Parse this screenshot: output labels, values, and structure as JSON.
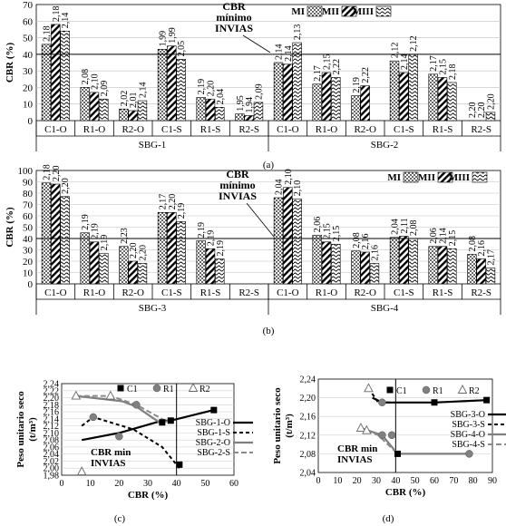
{
  "chart_data": [
    {
      "type": "bar",
      "panel": "(a)",
      "ylabel": "CBR (%)",
      "ylim": [
        0,
        70
      ],
      "yticks": [
        0,
        10,
        20,
        30,
        40,
        50,
        60,
        70
      ],
      "reference_line": {
        "value": 40,
        "label_lines": [
          "CBR",
          "mínimo",
          "INVIAS"
        ]
      },
      "legend": [
        "MI",
        "MII",
        "MIII"
      ],
      "groups": [
        {
          "name": "SBG-1",
          "categories": [
            "C1-O",
            "R1-O",
            "R2-O",
            "C1-S",
            "R1-S",
            "R2-S"
          ]
        },
        {
          "name": "SBG-2",
          "categories": [
            "C1-O",
            "R1-O",
            "R2-O",
            "C1-S",
            "R1-S",
            "R2-S"
          ]
        }
      ],
      "series": [
        {
          "name": "MI",
          "values": [
            46,
            20,
            7,
            43,
            14,
            4,
            35,
            22,
            15,
            36,
            28,
            0
          ],
          "labels": [
            "2,18",
            "2,08",
            "2,02",
            "1,99",
            "2,19",
            "1,95",
            "2,14",
            "2,17",
            "2,19",
            "2,12",
            "2,17",
            "2,20"
          ]
        },
        {
          "name": "MII",
          "values": [
            58,
            17,
            6,
            45,
            13,
            3,
            34,
            29,
            21,
            29,
            26,
            0
          ],
          "labels": [
            "2,18",
            "2,10",
            "2,01",
            "1,99",
            "2,20",
            "1,94",
            "2,14",
            "2,15",
            "2,22",
            "2,14",
            "2,15",
            "2,20"
          ]
        },
        {
          "name": "MIII",
          "values": [
            54,
            13,
            12,
            37,
            8,
            11,
            47,
            26,
            0,
            40,
            23,
            5
          ],
          "labels": [
            "2,14",
            "2,09",
            "2,14",
            "2,05",
            "2,04",
            "2,09",
            "2,13",
            "2,22",
            "",
            "2,12",
            "2,18",
            "2,20"
          ]
        }
      ]
    },
    {
      "type": "bar",
      "panel": "(b)",
      "ylabel": "CBR (%)",
      "ylim": [
        0,
        100
      ],
      "yticks": [
        0,
        10,
        20,
        30,
        40,
        50,
        60,
        70,
        80,
        90,
        100
      ],
      "reference_line": {
        "value": 40,
        "label_lines": [
          "CBR",
          "mínimo",
          "INVIAS"
        ]
      },
      "legend": [
        "MI",
        "MII",
        "MIII"
      ],
      "groups": [
        {
          "name": "SBG-3",
          "categories": [
            "C1-O",
            "R1-O",
            "R2-O",
            "C1-S",
            "R1-S",
            "R2-S"
          ]
        },
        {
          "name": "SBG-4",
          "categories": [
            "C1-O",
            "R1-O",
            "R2-O",
            "C1-S",
            "R1-S",
            "R2-S"
          ]
        }
      ],
      "series": [
        {
          "name": "MI",
          "values": [
            89,
            45,
            33,
            63,
            38,
            0,
            76,
            43,
            29,
            41,
            33,
            26
          ],
          "labels": [
            "2,18",
            "2,19",
            "2,23",
            "2,17",
            "2,19",
            "",
            "2,04",
            "2,06",
            "2,08",
            "2,04",
            "2,06",
            "2,08"
          ]
        },
        {
          "name": "MII",
          "values": [
            88,
            37,
            20,
            63,
            31,
            0,
            85,
            37,
            28,
            42,
            33,
            22
          ],
          "labels": [
            "2,20",
            "2,19",
            "2,20",
            "2,20",
            "2,19",
            "",
            "2,10",
            "2,15",
            "2,16",
            "2,11",
            "2,14",
            "2,16"
          ]
        },
        {
          "name": "MIII",
          "values": [
            77,
            27,
            18,
            55,
            22,
            0,
            75,
            35,
            18,
            40,
            31,
            14
          ],
          "labels": [
            "2,20",
            "2,19",
            "2,20",
            "2,19",
            "2,19",
            "",
            "2,10",
            "2,15",
            "2,16",
            "2,08",
            "2,15",
            "2,17"
          ]
        }
      ]
    },
    {
      "type": "line",
      "panel": "(c)",
      "xlabel": "CBR (%)",
      "ylabel": "Peso unitario seco (t/m³)",
      "ylabel_lines": [
        "Peso unitario seco",
        "(t/m³)"
      ],
      "xlim": [
        0,
        60
      ],
      "xticks": [
        0,
        10,
        20,
        30,
        40,
        50,
        60
      ],
      "ylim": [
        1.98,
        2.24
      ],
      "yticks": [
        "1,98",
        "2,00",
        "2,02",
        "2,04",
        "2,06",
        "2,08",
        "2,10",
        "2,12",
        "2,14",
        "2,16",
        "2,18",
        "2,20",
        "2,22",
        "2,24"
      ],
      "reference_line": {
        "x": 40,
        "label_lines": [
          "CBR min",
          "INVIAS"
        ]
      },
      "marker_legend": [
        "C1",
        "R1",
        "R2"
      ],
      "series": [
        {
          "name": "SBG-1-O",
          "style": "solid-black",
          "points": [
            [
              7,
              2.08
            ],
            [
              20,
              2.1
            ],
            [
              35,
              2.135
            ],
            [
              38,
              2.135
            ],
            [
              53,
              2.165
            ]
          ]
        },
        {
          "name": "SBG-1-S",
          "style": "dashed-black",
          "points": [
            [
              7,
              2.12
            ],
            [
              11,
              2.145
            ],
            [
              25,
              2.11
            ],
            [
              35,
              2.06
            ],
            [
              41,
              2.0
            ]
          ]
        },
        {
          "name": "SBG-2-O",
          "style": "solid-gray",
          "points": [
            [
              5,
              2.205
            ],
            [
              21,
              2.19
            ],
            [
              26,
              2.175
            ],
            [
              34,
              2.13
            ],
            [
              38,
              2.135
            ]
          ]
        },
        {
          "name": "SBG-2-S",
          "style": "dashed-gray",
          "points": [
            [
              5,
              2.205
            ],
            [
              17,
              2.205
            ],
            [
              26,
              2.18
            ],
            [
              36,
              2.135
            ]
          ]
        }
      ],
      "markers": [
        {
          "type": "C1",
          "x": 35,
          "y": 2.13
        },
        {
          "type": "C1",
          "x": 38,
          "y": 2.135
        },
        {
          "type": "C1",
          "x": 41,
          "y": 2.01
        },
        {
          "type": "C1",
          "x": 53,
          "y": 2.165
        },
        {
          "type": "R1",
          "x": 11,
          "y": 2.145
        },
        {
          "type": "R1",
          "x": 20,
          "y": 2.09
        },
        {
          "type": "R1",
          "x": 26,
          "y": 2.18
        },
        {
          "type": "R2",
          "x": 5,
          "y": 2.205
        },
        {
          "type": "R2",
          "x": 17,
          "y": 2.205
        },
        {
          "type": "R2",
          "x": 7,
          "y": 1.99
        }
      ]
    },
    {
      "type": "line",
      "panel": "(d)",
      "xlabel": "CBR (%)",
      "ylabel": "Peso unitario seco (t/m³)",
      "ylabel_lines": [
        "Peso unitario seco",
        "(t/m³)"
      ],
      "xlim": [
        0,
        90
      ],
      "xticks": [
        0,
        10,
        20,
        30,
        40,
        50,
        60,
        70,
        80,
        90
      ],
      "ylim": [
        2.04,
        2.24
      ],
      "yticks": [
        "2,04",
        "2,08",
        "2,12",
        "2,16",
        "2,20",
        "2,24"
      ],
      "reference_line": {
        "x": 40,
        "label_lines": [
          "CBR min",
          "INVIAS"
        ]
      },
      "marker_legend": [
        "C1",
        "R1",
        "R2"
      ],
      "series": [
        {
          "name": "SBG-3-O",
          "style": "solid-black",
          "points": [
            [
              28,
              2.2
            ],
            [
              33,
              2.19
            ],
            [
              60,
              2.19
            ],
            [
              87,
              2.195
            ]
          ]
        },
        {
          "name": "SBG-3-S",
          "style": "dashed-black",
          "points": [
            [
              26,
              2.22
            ],
            [
              31,
              2.19
            ],
            [
              38,
              2.19
            ]
          ]
        },
        {
          "name": "SBG-4-O",
          "style": "solid-gray",
          "points": [
            [
              22,
              2.135
            ],
            [
              33,
              2.12
            ],
            [
              41,
              2.08
            ],
            [
              78,
              2.08
            ]
          ]
        },
        {
          "name": "SBG-4-S",
          "style": "dashed-gray",
          "points": [
            [
              25,
              2.13
            ],
            [
              31,
              2.12
            ],
            [
              41,
              2.08
            ]
          ]
        }
      ],
      "markers": [
        {
          "type": "C1",
          "x": 41,
          "y": 2.08
        },
        {
          "type": "C1",
          "x": 60,
          "y": 2.19
        },
        {
          "type": "C1",
          "x": 87,
          "y": 2.195
        },
        {
          "type": "R1",
          "x": 33,
          "y": 2.19
        },
        {
          "type": "R1",
          "x": 33,
          "y": 2.12
        },
        {
          "type": "R1",
          "x": 38,
          "y": 2.12
        },
        {
          "type": "R1",
          "x": 78,
          "y": 2.08
        },
        {
          "type": "R2",
          "x": 22,
          "y": 2.135
        },
        {
          "type": "R2",
          "x": 25,
          "y": 2.13
        },
        {
          "type": "R2",
          "x": 26,
          "y": 2.22
        }
      ]
    }
  ]
}
